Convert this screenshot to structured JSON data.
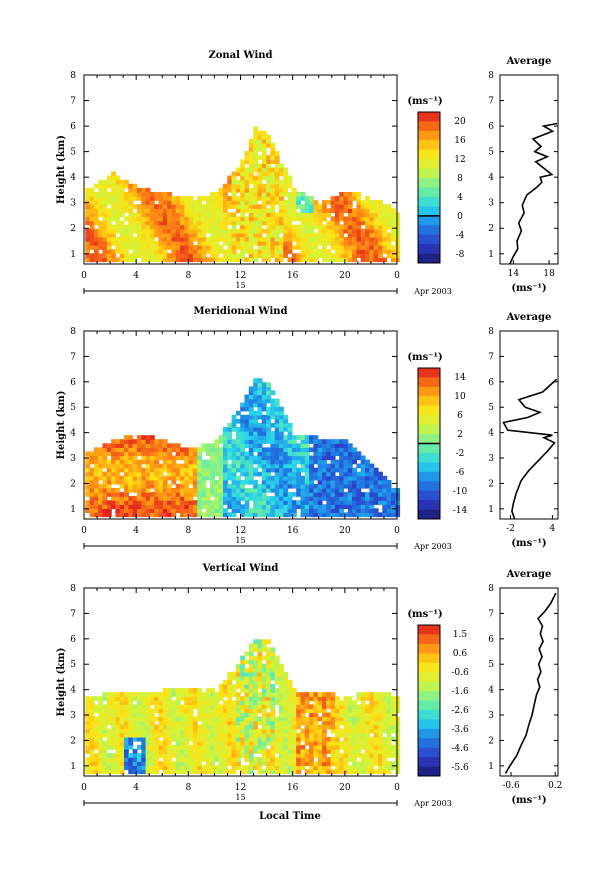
{
  "footer": {
    "xlabel": "Local Time"
  },
  "chart_data": [
    {
      "type": "heatmap",
      "title": "Zonal Wind",
      "ylabel": "Height (km)",
      "xlabel": "",
      "x_ticks": [
        "0",
        "4",
        "8",
        "12",
        "16",
        "20",
        "0"
      ],
      "y_ticks": [
        "1",
        "2",
        "3",
        "4",
        "5",
        "6",
        "7",
        "8"
      ],
      "xlim": [
        0,
        24
      ],
      "ylim": [
        0.6,
        8
      ],
      "date_day": "15",
      "date_label": "Apr 2003",
      "colorbar": {
        "unit": "(ms⁻¹)",
        "ticks": [
          "20",
          "16",
          "12",
          "8",
          "4",
          "0",
          "-4",
          "-8"
        ],
        "vmin": -10,
        "vmax": 22,
        "zero_line": 0
      },
      "average": {
        "title": "Average",
        "x_ticks": [
          "14",
          "18"
        ],
        "xlim": [
          12.5,
          19
        ],
        "ylim": [
          0.6,
          8
        ],
        "unit": "(ms⁻¹)",
        "profile_x": [
          13.6,
          14.0,
          14.5,
          14.4,
          14.9,
          14.6,
          15.2,
          15.0,
          15.5,
          16.6,
          17.2,
          17.0,
          18.3,
          17.6,
          16.5,
          17.8,
          16.4,
          17.1,
          16.2,
          18.4,
          17.4,
          18.9
        ],
        "profile_y": [
          0.6,
          0.9,
          1.2,
          1.5,
          1.9,
          2.2,
          2.6,
          2.9,
          3.3,
          3.6,
          3.8,
          4.0,
          4.1,
          4.3,
          4.6,
          4.8,
          5.0,
          5.2,
          5.5,
          5.8,
          6.0,
          6.1
        ]
      },
      "data_region": {
        "x": [
          0,
          2,
          4,
          6,
          8,
          10,
          12,
          13,
          14,
          16,
          18,
          20,
          22,
          24
        ],
        "top_km": [
          3.4,
          4.1,
          3.5,
          3.3,
          3.1,
          3.3,
          4.6,
          5.9,
          5.6,
          3.5,
          2.9,
          3.4,
          3.1,
          2.6
        ]
      }
    },
    {
      "type": "heatmap",
      "title": "Meridional Wind",
      "ylabel": "Height (km)",
      "xlabel": "",
      "x_ticks": [
        "0",
        "4",
        "8",
        "12",
        "16",
        "20",
        "0"
      ],
      "y_ticks": [
        "1",
        "2",
        "3",
        "4",
        "5",
        "6",
        "7",
        "8"
      ],
      "xlim": [
        0,
        24
      ],
      "ylim": [
        0.6,
        8
      ],
      "date_day": "15",
      "date_label": "Apr 2003",
      "colorbar": {
        "unit": "(ms⁻¹)",
        "ticks": [
          "14",
          "10",
          "6",
          "2",
          "-2",
          "-6",
          "-10",
          "-14"
        ],
        "vmin": -16,
        "vmax": 16,
        "zero_line": 0
      },
      "average": {
        "title": "Average",
        "x_ticks": [
          "-2",
          "4"
        ],
        "xlim": [
          -3.5,
          4.8
        ],
        "ylim": [
          0.6,
          8
        ],
        "unit": "(ms⁻¹)",
        "profile_x": [
          -1.4,
          -1.8,
          -1.6,
          -1.2,
          -0.5,
          0.6,
          2.0,
          3.4,
          4.3,
          2.8,
          4.0,
          -2.4,
          -3.0,
          0.5,
          2.2,
          0.1,
          -0.8,
          2.6,
          3.8,
          4.6
        ],
        "profile_y": [
          0.6,
          0.9,
          1.2,
          1.6,
          2.1,
          2.5,
          2.9,
          3.3,
          3.6,
          3.8,
          3.9,
          4.1,
          4.4,
          4.6,
          4.8,
          5.0,
          5.3,
          5.6,
          5.9,
          6.1
        ]
      },
      "data_region": {
        "x": [
          0,
          2,
          4,
          6,
          8,
          10,
          12,
          13,
          14,
          16,
          18,
          20,
          22,
          24
        ],
        "top_km": [
          3.1,
          3.6,
          3.9,
          3.6,
          3.3,
          3.6,
          5.1,
          6.1,
          5.9,
          3.9,
          3.7,
          3.6,
          2.6,
          1.6
        ]
      }
    },
    {
      "type": "heatmap",
      "title": "Vertical Wind",
      "ylabel": "Height (km)",
      "xlabel": "Local Time",
      "x_ticks": [
        "0",
        "4",
        "8",
        "12",
        "16",
        "20",
        "0"
      ],
      "y_ticks": [
        "1",
        "2",
        "3",
        "4",
        "5",
        "6",
        "7",
        "8"
      ],
      "xlim": [
        0,
        24
      ],
      "ylim": [
        0.6,
        8
      ],
      "date_day": "15",
      "date_label": "Apr 2003",
      "colorbar": {
        "unit": "(ms⁻¹)",
        "ticks": [
          "1.5",
          "0.6",
          "-0.6",
          "-1.6",
          "-2.6",
          "-3.6",
          "-4.6",
          "-5.6"
        ],
        "vmin": -6.1,
        "vmax": 2.0
      },
      "average": {
        "title": "Average",
        "x_ticks": [
          "-0.6",
          "0.2"
        ],
        "xlim": [
          -0.8,
          0.25
        ],
        "ylim": [
          0.6,
          8
        ],
        "unit": "(ms⁻¹)",
        "profile_x": [
          -0.7,
          -0.62,
          -0.5,
          -0.42,
          -0.33,
          -0.28,
          -0.22,
          -0.18,
          -0.14,
          -0.08,
          -0.12,
          -0.06,
          -0.1,
          -0.04,
          -0.09,
          -0.02,
          -0.07,
          -0.03,
          -0.11,
          0.02,
          0.12,
          0.21
        ],
        "profile_y": [
          0.7,
          1.0,
          1.4,
          1.8,
          2.2,
          2.6,
          3.0,
          3.4,
          3.8,
          4.1,
          4.4,
          4.7,
          5.0,
          5.3,
          5.6,
          5.9,
          6.2,
          6.5,
          6.8,
          7.1,
          7.4,
          7.8
        ]
      },
      "data_region": {
        "x": [
          0,
          2,
          4,
          6,
          8,
          10,
          12,
          13,
          14,
          16,
          18,
          20,
          22,
          24
        ],
        "top_km": [
          3.6,
          3.8,
          3.9,
          3.9,
          4.0,
          3.9,
          5.2,
          6.0,
          5.9,
          3.9,
          3.8,
          3.7,
          3.8,
          3.7
        ]
      }
    }
  ]
}
